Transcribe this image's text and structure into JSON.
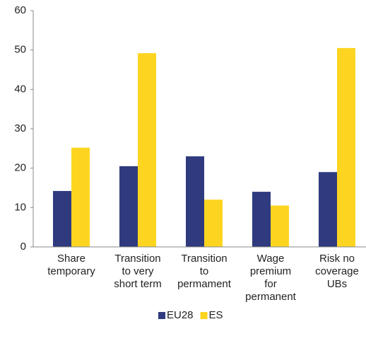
{
  "chart_data": {
    "type": "bar",
    "categories": [
      "Share\ntemporary",
      "Transition\nto very\nshort term",
      "Transition\nto\npermament",
      "Wage\npremium\nfor\npermanent",
      "Risk no\ncoverage\nUBs"
    ],
    "series": [
      {
        "name": "EU28",
        "color": "#2f3b7e",
        "values": [
          14.2,
          20.5,
          23,
          14,
          19
        ]
      },
      {
        "name": "ES",
        "color": "#fdd521",
        "values": [
          25.2,
          49.2,
          12,
          10.5,
          50.5
        ]
      }
    ],
    "ylim": [
      0,
      60
    ],
    "yticks": [
      0,
      10,
      20,
      30,
      40,
      50,
      60
    ]
  }
}
